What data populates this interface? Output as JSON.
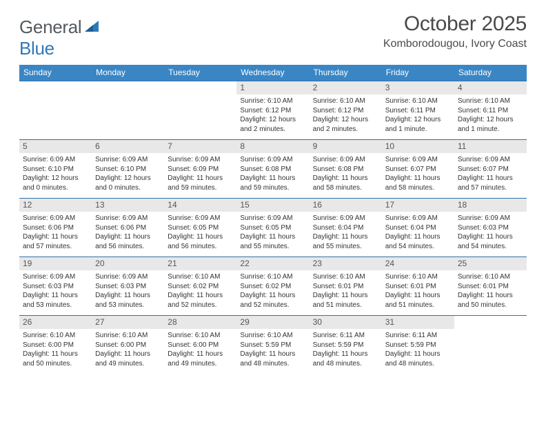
{
  "logo": {
    "text1": "General",
    "text2": "Blue"
  },
  "title": "October 2025",
  "location": "Komborodougou, Ivory Coast",
  "colors": {
    "header_bg": "#3a86c5",
    "header_text": "#ffffff",
    "daynum_bg": "#e8e8e8",
    "row_border": "#2f6fa8",
    "title_color": "#4a4a4a",
    "logo_gray": "#555a5e",
    "logo_blue": "#2f78b8",
    "body_text": "#333333",
    "page_bg": "#ffffff"
  },
  "typography": {
    "title_fontsize": 30,
    "location_fontsize": 16,
    "dayhead_fontsize": 12,
    "daynum_fontsize": 12,
    "daybody_fontsize": 10,
    "logo_fontsize": 26
  },
  "day_headers": [
    "Sunday",
    "Monday",
    "Tuesday",
    "Wednesday",
    "Thursday",
    "Friday",
    "Saturday"
  ],
  "weeks": [
    [
      {
        "n": "",
        "lines": [
          "",
          "",
          "",
          ""
        ]
      },
      {
        "n": "",
        "lines": [
          "",
          "",
          "",
          ""
        ]
      },
      {
        "n": "",
        "lines": [
          "",
          "",
          "",
          ""
        ]
      },
      {
        "n": "1",
        "lines": [
          "Sunrise: 6:10 AM",
          "Sunset: 6:12 PM",
          "Daylight: 12 hours",
          "and 2 minutes."
        ]
      },
      {
        "n": "2",
        "lines": [
          "Sunrise: 6:10 AM",
          "Sunset: 6:12 PM",
          "Daylight: 12 hours",
          "and 2 minutes."
        ]
      },
      {
        "n": "3",
        "lines": [
          "Sunrise: 6:10 AM",
          "Sunset: 6:11 PM",
          "Daylight: 12 hours",
          "and 1 minute."
        ]
      },
      {
        "n": "4",
        "lines": [
          "Sunrise: 6:10 AM",
          "Sunset: 6:11 PM",
          "Daylight: 12 hours",
          "and 1 minute."
        ]
      }
    ],
    [
      {
        "n": "5",
        "lines": [
          "Sunrise: 6:09 AM",
          "Sunset: 6:10 PM",
          "Daylight: 12 hours",
          "and 0 minutes."
        ]
      },
      {
        "n": "6",
        "lines": [
          "Sunrise: 6:09 AM",
          "Sunset: 6:10 PM",
          "Daylight: 12 hours",
          "and 0 minutes."
        ]
      },
      {
        "n": "7",
        "lines": [
          "Sunrise: 6:09 AM",
          "Sunset: 6:09 PM",
          "Daylight: 11 hours",
          "and 59 minutes."
        ]
      },
      {
        "n": "8",
        "lines": [
          "Sunrise: 6:09 AM",
          "Sunset: 6:08 PM",
          "Daylight: 11 hours",
          "and 59 minutes."
        ]
      },
      {
        "n": "9",
        "lines": [
          "Sunrise: 6:09 AM",
          "Sunset: 6:08 PM",
          "Daylight: 11 hours",
          "and 58 minutes."
        ]
      },
      {
        "n": "10",
        "lines": [
          "Sunrise: 6:09 AM",
          "Sunset: 6:07 PM",
          "Daylight: 11 hours",
          "and 58 minutes."
        ]
      },
      {
        "n": "11",
        "lines": [
          "Sunrise: 6:09 AM",
          "Sunset: 6:07 PM",
          "Daylight: 11 hours",
          "and 57 minutes."
        ]
      }
    ],
    [
      {
        "n": "12",
        "lines": [
          "Sunrise: 6:09 AM",
          "Sunset: 6:06 PM",
          "Daylight: 11 hours",
          "and 57 minutes."
        ]
      },
      {
        "n": "13",
        "lines": [
          "Sunrise: 6:09 AM",
          "Sunset: 6:06 PM",
          "Daylight: 11 hours",
          "and 56 minutes."
        ]
      },
      {
        "n": "14",
        "lines": [
          "Sunrise: 6:09 AM",
          "Sunset: 6:05 PM",
          "Daylight: 11 hours",
          "and 56 minutes."
        ]
      },
      {
        "n": "15",
        "lines": [
          "Sunrise: 6:09 AM",
          "Sunset: 6:05 PM",
          "Daylight: 11 hours",
          "and 55 minutes."
        ]
      },
      {
        "n": "16",
        "lines": [
          "Sunrise: 6:09 AM",
          "Sunset: 6:04 PM",
          "Daylight: 11 hours",
          "and 55 minutes."
        ]
      },
      {
        "n": "17",
        "lines": [
          "Sunrise: 6:09 AM",
          "Sunset: 6:04 PM",
          "Daylight: 11 hours",
          "and 54 minutes."
        ]
      },
      {
        "n": "18",
        "lines": [
          "Sunrise: 6:09 AM",
          "Sunset: 6:03 PM",
          "Daylight: 11 hours",
          "and 54 minutes."
        ]
      }
    ],
    [
      {
        "n": "19",
        "lines": [
          "Sunrise: 6:09 AM",
          "Sunset: 6:03 PM",
          "Daylight: 11 hours",
          "and 53 minutes."
        ]
      },
      {
        "n": "20",
        "lines": [
          "Sunrise: 6:09 AM",
          "Sunset: 6:03 PM",
          "Daylight: 11 hours",
          "and 53 minutes."
        ]
      },
      {
        "n": "21",
        "lines": [
          "Sunrise: 6:10 AM",
          "Sunset: 6:02 PM",
          "Daylight: 11 hours",
          "and 52 minutes."
        ]
      },
      {
        "n": "22",
        "lines": [
          "Sunrise: 6:10 AM",
          "Sunset: 6:02 PM",
          "Daylight: 11 hours",
          "and 52 minutes."
        ]
      },
      {
        "n": "23",
        "lines": [
          "Sunrise: 6:10 AM",
          "Sunset: 6:01 PM",
          "Daylight: 11 hours",
          "and 51 minutes."
        ]
      },
      {
        "n": "24",
        "lines": [
          "Sunrise: 6:10 AM",
          "Sunset: 6:01 PM",
          "Daylight: 11 hours",
          "and 51 minutes."
        ]
      },
      {
        "n": "25",
        "lines": [
          "Sunrise: 6:10 AM",
          "Sunset: 6:01 PM",
          "Daylight: 11 hours",
          "and 50 minutes."
        ]
      }
    ],
    [
      {
        "n": "26",
        "lines": [
          "Sunrise: 6:10 AM",
          "Sunset: 6:00 PM",
          "Daylight: 11 hours",
          "and 50 minutes."
        ]
      },
      {
        "n": "27",
        "lines": [
          "Sunrise: 6:10 AM",
          "Sunset: 6:00 PM",
          "Daylight: 11 hours",
          "and 49 minutes."
        ]
      },
      {
        "n": "28",
        "lines": [
          "Sunrise: 6:10 AM",
          "Sunset: 6:00 PM",
          "Daylight: 11 hours",
          "and 49 minutes."
        ]
      },
      {
        "n": "29",
        "lines": [
          "Sunrise: 6:10 AM",
          "Sunset: 5:59 PM",
          "Daylight: 11 hours",
          "and 48 minutes."
        ]
      },
      {
        "n": "30",
        "lines": [
          "Sunrise: 6:11 AM",
          "Sunset: 5:59 PM",
          "Daylight: 11 hours",
          "and 48 minutes."
        ]
      },
      {
        "n": "31",
        "lines": [
          "Sunrise: 6:11 AM",
          "Sunset: 5:59 PM",
          "Daylight: 11 hours",
          "and 48 minutes."
        ]
      },
      {
        "n": "",
        "lines": [
          "",
          "",
          "",
          ""
        ]
      }
    ]
  ]
}
